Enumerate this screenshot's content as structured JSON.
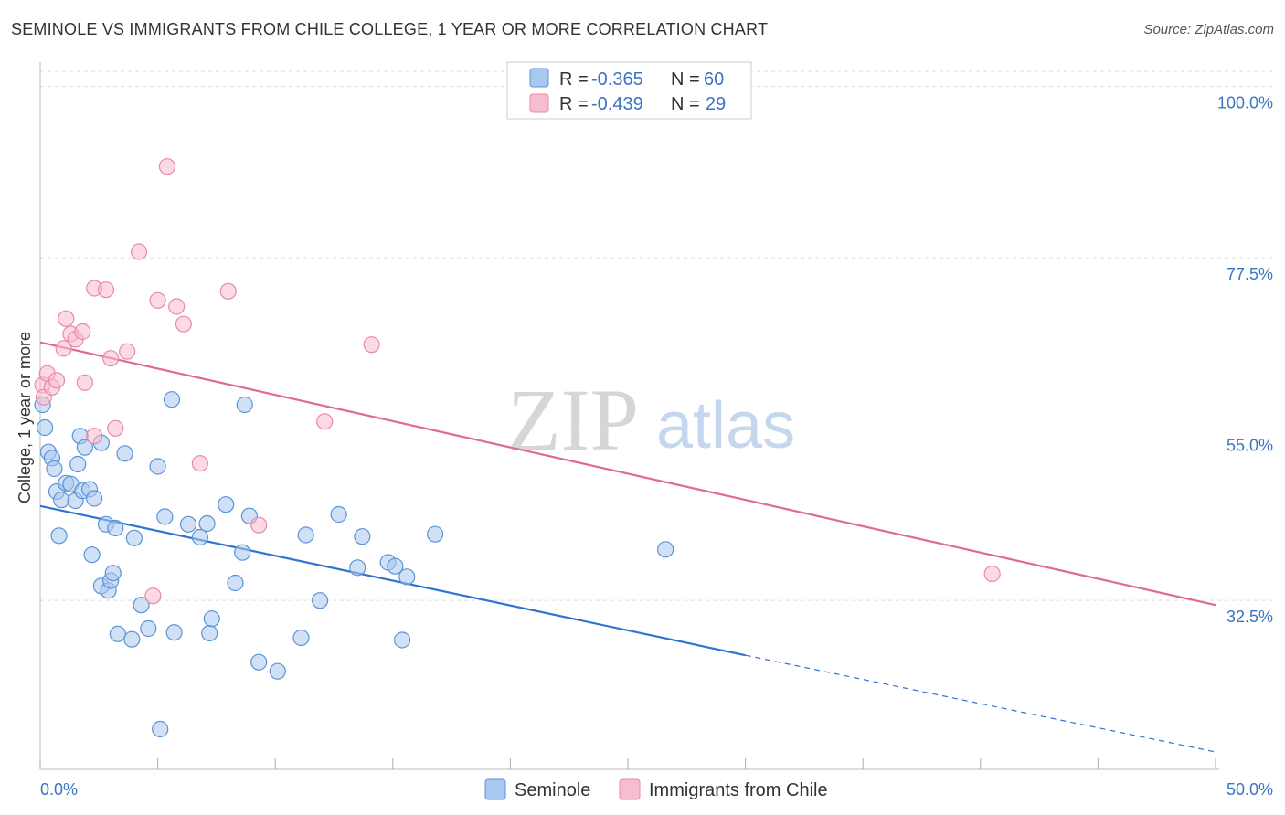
{
  "header": {
    "title": "SEMINOLE VS IMMIGRANTS FROM CHILE COLLEGE, 1 YEAR OR MORE CORRELATION CHART",
    "source": "Source: ZipAtlas.com"
  },
  "watermark": {
    "zip": "ZIP",
    "atlas": "atlas"
  },
  "colors": {
    "seminole_fill": "#a9c8ef",
    "seminole_stroke": "#5a93d8",
    "seminole_line": "#2f74d0",
    "chile_fill": "#f7bccd",
    "chile_stroke": "#e88aa6",
    "chile_line": "#e06a93",
    "tick_label": "#3a74c4",
    "grid": "#dddddd"
  },
  "legend_box": {
    "rows": [
      {
        "r_label": "R = ",
        "r_value": "-0.365",
        "n_label": "N = ",
        "n_value": "60"
      },
      {
        "r_label": "R = ",
        "r_value": "-0.439",
        "n_label": "N = ",
        "n_value": "29"
      }
    ]
  },
  "chart_data": {
    "type": "scatter",
    "title": "SEMINOLE VS IMMIGRANTS FROM CHILE COLLEGE, 1 YEAR OR MORE CORRELATION CHART",
    "xlabel": "",
    "ylabel": "College, 1 year or more",
    "xlim": [
      0,
      50
    ],
    "ylim": [
      12,
      102
    ],
    "x_tick_labels": [
      "0.0%",
      "50.0%"
    ],
    "y_ticks": [
      32.5,
      55.0,
      77.5,
      100.0
    ],
    "y_tick_labels": [
      "32.5%",
      "55.0%",
      "77.5%",
      "100.0%"
    ],
    "grid": true,
    "legend_position": "bottom",
    "series": [
      {
        "name": "Seminole",
        "color": "#5a93d8",
        "points": [
          [
            0.1,
            58.2
          ],
          [
            0.2,
            55.2
          ],
          [
            0.35,
            52.0
          ],
          [
            0.5,
            51.2
          ],
          [
            0.6,
            49.8
          ],
          [
            0.7,
            46.8
          ],
          [
            0.8,
            41.0
          ],
          [
            0.9,
            45.7
          ],
          [
            1.1,
            47.9
          ],
          [
            1.3,
            47.8
          ],
          [
            1.5,
            45.6
          ],
          [
            1.6,
            50.4
          ],
          [
            1.7,
            54.1
          ],
          [
            1.9,
            52.6
          ],
          [
            1.8,
            46.9
          ],
          [
            2.1,
            47.1
          ],
          [
            2.2,
            38.5
          ],
          [
            2.3,
            45.9
          ],
          [
            2.6,
            53.2
          ],
          [
            2.6,
            34.4
          ],
          [
            2.8,
            42.5
          ],
          [
            2.9,
            33.8
          ],
          [
            3.0,
            35.1
          ],
          [
            3.1,
            36.1
          ],
          [
            3.2,
            42.0
          ],
          [
            3.3,
            28.1
          ],
          [
            3.6,
            51.8
          ],
          [
            3.9,
            27.4
          ],
          [
            4.0,
            40.7
          ],
          [
            4.3,
            31.9
          ],
          [
            4.6,
            28.8
          ],
          [
            5.0,
            50.1
          ],
          [
            5.1,
            15.6
          ],
          [
            5.3,
            43.5
          ],
          [
            5.6,
            58.9
          ],
          [
            5.7,
            28.3
          ],
          [
            6.3,
            42.5
          ],
          [
            6.8,
            40.8
          ],
          [
            7.1,
            42.6
          ],
          [
            7.2,
            28.2
          ],
          [
            7.3,
            30.1
          ],
          [
            7.9,
            45.1
          ],
          [
            8.3,
            34.8
          ],
          [
            8.6,
            38.8
          ],
          [
            8.7,
            58.2
          ],
          [
            8.9,
            43.6
          ],
          [
            9.3,
            24.4
          ],
          [
            10.1,
            23.2
          ],
          [
            11.1,
            27.6
          ],
          [
            11.3,
            41.1
          ],
          [
            11.9,
            32.5
          ],
          [
            12.7,
            43.8
          ],
          [
            13.5,
            36.8
          ],
          [
            13.7,
            40.9
          ],
          [
            14.8,
            37.5
          ],
          [
            15.1,
            37.0
          ],
          [
            15.6,
            35.6
          ],
          [
            15.4,
            27.3
          ],
          [
            16.8,
            41.2
          ],
          [
            26.6,
            39.2
          ]
        ],
        "trend": {
          "x": [
            0,
            30
          ],
          "y": [
            44.9,
            25.3
          ],
          "dashed_to": [
            50,
            12.6
          ]
        }
      },
      {
        "name": "Immigrants from Chile",
        "color": "#e88aa6",
        "points": [
          [
            0.1,
            60.8
          ],
          [
            0.15,
            59.2
          ],
          [
            0.3,
            62.3
          ],
          [
            0.5,
            60.5
          ],
          [
            0.7,
            61.4
          ],
          [
            1.0,
            65.6
          ],
          [
            1.1,
            69.5
          ],
          [
            1.3,
            67.5
          ],
          [
            1.5,
            66.8
          ],
          [
            1.8,
            67.8
          ],
          [
            1.9,
            61.1
          ],
          [
            2.3,
            54.1
          ],
          [
            2.3,
            73.5
          ],
          [
            2.8,
            73.3
          ],
          [
            3.0,
            64.3
          ],
          [
            3.2,
            55.1
          ],
          [
            3.7,
            65.2
          ],
          [
            4.2,
            78.3
          ],
          [
            4.8,
            33.1
          ],
          [
            5.0,
            71.9
          ],
          [
            5.4,
            89.5
          ],
          [
            5.8,
            71.1
          ],
          [
            6.1,
            68.8
          ],
          [
            6.8,
            50.5
          ],
          [
            8.0,
            73.1
          ],
          [
            9.3,
            42.4
          ],
          [
            12.1,
            56.0
          ],
          [
            14.1,
            66.1
          ],
          [
            40.5,
            36.0
          ]
        ],
        "trend": {
          "x": [
            0,
            50
          ],
          "y": [
            66.4,
            31.9
          ]
        }
      }
    ]
  },
  "bottom_legend": {
    "items": [
      {
        "label": "Seminole"
      },
      {
        "label": "Immigrants from Chile"
      }
    ]
  }
}
